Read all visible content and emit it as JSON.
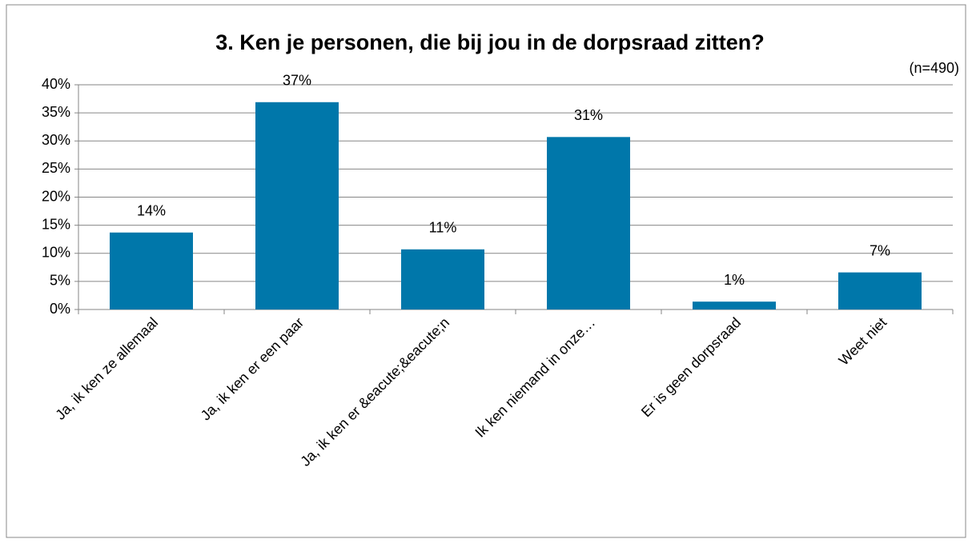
{
  "chart_data": {
    "type": "bar",
    "title": "3. Ken je personen, die bij jou in de dorpsraad zitten?",
    "subtitle": "(n=490)",
    "categories": [
      "Ja, ik ken ze allemaal",
      "Ja, ik ken er een paar",
      "Ja, ik ken er &eacute;&eacute;n",
      "Ik ken niemand in onze…",
      "Er is geen dorpsraad",
      "Weet niet"
    ],
    "values": [
      13.7,
      36.9,
      10.7,
      30.7,
      1.4,
      6.6
    ],
    "value_labels": [
      "14%",
      "37%",
      "11%",
      "31%",
      "1%",
      "7%"
    ],
    "color": "#0077aa",
    "ylim": [
      0,
      40
    ],
    "yticks": [
      {
        "value": 0,
        "label": "0%"
      },
      {
        "value": 5,
        "label": "5%"
      },
      {
        "value": 10,
        "label": "10%"
      },
      {
        "value": 15,
        "label": "15%"
      },
      {
        "value": 20,
        "label": "20%"
      },
      {
        "value": 25,
        "label": "25%"
      },
      {
        "value": 30,
        "label": "30%"
      },
      {
        "value": 35,
        "label": "35%"
      },
      {
        "value": 40,
        "label": "40%"
      }
    ],
    "grid": true
  }
}
